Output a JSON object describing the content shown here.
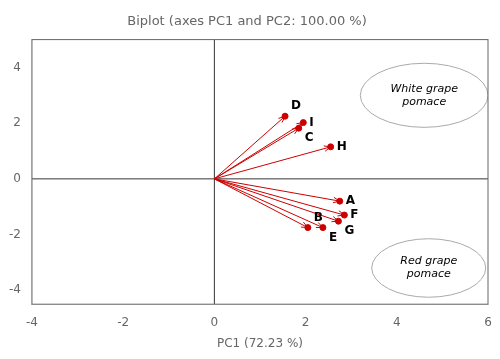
{
  "chart_data": {
    "type": "scatter",
    "title": "Biplot (axes PC1 and PC2: 100.00 %)",
    "xlabel": "PC1 (72.23 %)",
    "xlim": [
      -4,
      6
    ],
    "ylim": [
      -4.5,
      5
    ],
    "xticks": [
      -4,
      -2,
      0,
      2,
      4,
      6
    ],
    "yticks": [
      -4,
      -2,
      0,
      2,
      4
    ],
    "grid": false,
    "marker": "arrow",
    "color": "#cc0000",
    "labels": [
      "D",
      "I",
      "C",
      "H",
      "A",
      "F",
      "G",
      "E",
      "B"
    ],
    "x": [
      1.55,
      1.95,
      1.85,
      2.55,
      2.75,
      2.85,
      2.72,
      2.38,
      2.05
    ],
    "values": [
      2.25,
      2.02,
      1.82,
      1.15,
      -0.8,
      -1.3,
      -1.52,
      -1.75,
      -1.75
    ],
    "annotations": [
      {
        "text": "White grape\npomace",
        "shape": "ellipse",
        "cx": 4.6,
        "cy": 3.0,
        "width": 2.8,
        "height": 2.3
      },
      {
        "text": "Red grape\npomace",
        "shape": "ellipse",
        "cx": 4.7,
        "cy": -3.2,
        "width": 2.5,
        "height": 2.1
      }
    ]
  }
}
